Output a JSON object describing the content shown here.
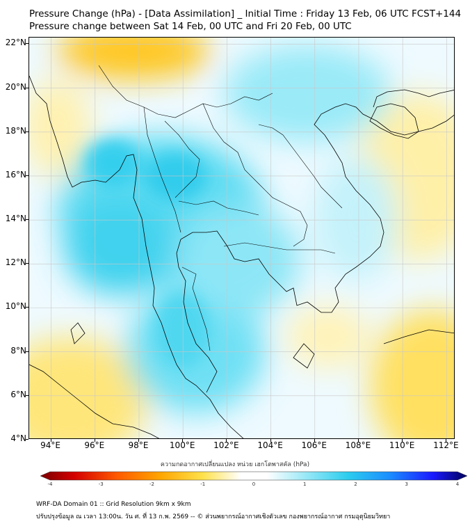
{
  "title": {
    "line1": "Pressure Change (hPa) - [Data Assimilation] _ Initial Time : Friday 13 Feb, 06 UTC FCST+144",
    "line2": "Pressure change between Sat 14 Feb, 00 UTC and Fri 20 Feb, 00 UTC"
  },
  "map": {
    "lat_labels": [
      "22°N",
      "20°N",
      "18°N",
      "16°N",
      "14°N",
      "12°N",
      "10°N",
      "8°N",
      "6°N",
      "4°N"
    ],
    "lon_labels": [
      "94°E",
      "96°E",
      "98°E",
      "100°E",
      "102°E",
      "104°E",
      "106°E",
      "108°E",
      "110°E",
      "112°E"
    ],
    "lat_range": [
      4,
      22.3
    ],
    "lon_range": [
      93,
      112.4
    ],
    "grid": true,
    "colors": {
      "warm": "#ffd21a",
      "cool": "#1cc8ea",
      "neutral": "#ffffff",
      "border": "#000000",
      "grid": "#c8c8c8"
    }
  },
  "colorbar": {
    "caption": "ความกดอากาศเปลี่ยนแปลง หน่วย เฮกโตพาสคัล (hPa)",
    "tick_labels": [
      "-4",
      "-3",
      "-2",
      "-1",
      "0",
      "1",
      "2",
      "3",
      "4"
    ],
    "range": [
      -4,
      4
    ]
  },
  "footer": {
    "line1": "WRF-DA Domain 01 :: Grid Resolution 9km x 9km",
    "line2": "ปรับปรุงข้อมูล ณ เวลา 13:00น. วัน ศ. ที่ 13 ก.พ. 2569 -- © ส่วนพยากรณ์อากาศเชิงตัวเลข กองพยากรณ์อากาศ กรมอุตุนิยมวิทยา"
  }
}
